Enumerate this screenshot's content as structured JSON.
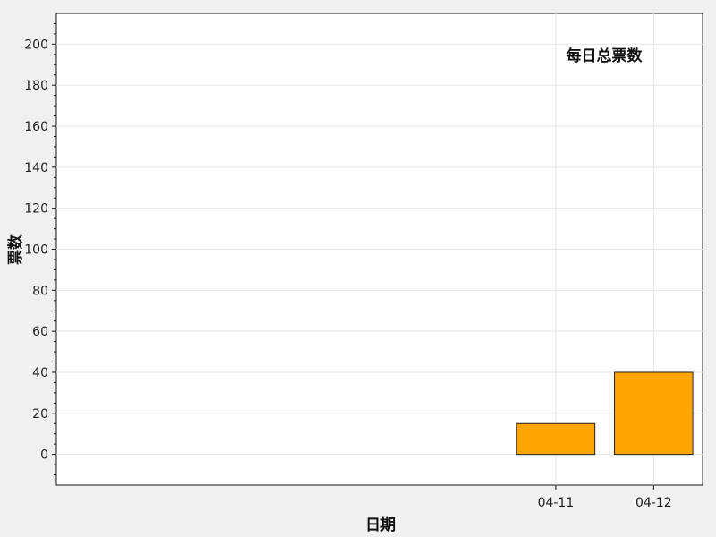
{
  "chart_data": {
    "type": "bar",
    "title": "每日总票数",
    "xlabel": "日期",
    "ylabel": "票数",
    "categories": [
      "04-11",
      "04-12"
    ],
    "values": [
      15,
      40
    ],
    "ylim": [
      -15,
      215
    ],
    "yticks": [
      0,
      20,
      40,
      60,
      80,
      100,
      120,
      140,
      160,
      180,
      200
    ],
    "xlim": [
      -5.1,
      1.5
    ],
    "grid": true,
    "bar_color": "#ffa500",
    "bar_edge_color": "#222222",
    "plot_background": "#ffffff",
    "page_background": "#f0f0f0",
    "grid_color": "#e6e6e6"
  }
}
